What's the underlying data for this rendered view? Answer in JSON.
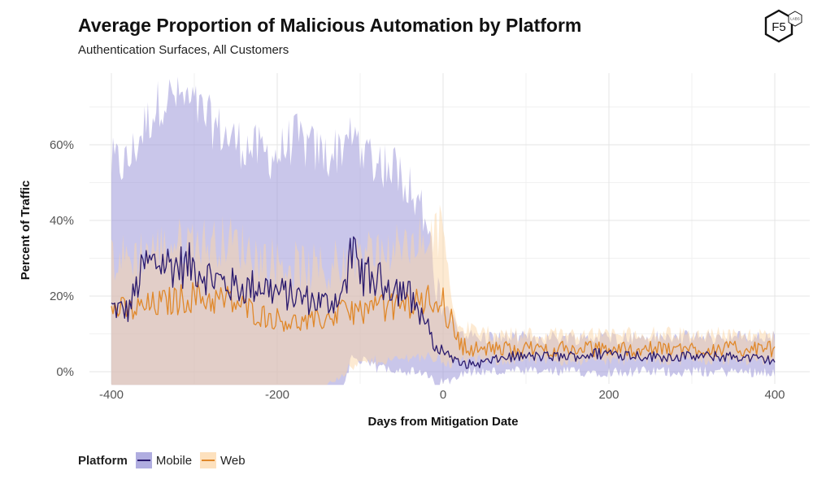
{
  "chart_data": {
    "type": "line",
    "title": "Average Proportion of Malicious Automation by Platform",
    "subtitle": "Authentication Surfaces, All Customers",
    "xlabel": "Days from Mitigation Date",
    "ylabel": "Percent of Traffic",
    "xlim": [
      -400,
      400
    ],
    "ylim": [
      -3.5,
      78
    ],
    "x_ticks": [
      -400,
      -200,
      0,
      200,
      400
    ],
    "x_tick_labels": [
      "-400",
      "-200",
      "0",
      "200",
      "400"
    ],
    "y_ticks": [
      0,
      20,
      40,
      60
    ],
    "y_tick_labels": [
      "0%",
      "20%",
      "40%",
      "60%"
    ],
    "grid": true,
    "legend_title": "Platform",
    "legend_position": "bottom-left",
    "series": [
      {
        "name": "Mobile",
        "color": "#2a1a6e",
        "band_color": "#9c98d8",
        "x": [
          -400,
          -380,
          -360,
          -340,
          -320,
          -300,
          -280,
          -260,
          -240,
          -220,
          -200,
          -180,
          -160,
          -140,
          -120,
          -110,
          -100,
          -80,
          -60,
          -40,
          -20,
          -10,
          0,
          10,
          20,
          40,
          60,
          80,
          100,
          150,
          200,
          250,
          300,
          350,
          400
        ],
        "values": [
          17,
          16,
          28,
          29,
          28,
          28,
          25,
          23,
          22,
          23,
          21,
          20,
          19,
          18,
          21,
          31,
          26,
          24,
          23,
          20,
          13,
          6,
          6,
          4,
          2,
          2,
          3,
          4,
          4,
          4,
          5,
          4,
          4,
          4,
          3
        ],
        "upper": [
          55,
          55,
          65,
          72,
          73,
          70,
          66,
          62,
          60,
          58,
          57,
          62,
          59,
          57,
          60,
          64,
          60,
          56,
          54,
          50,
          40,
          22,
          18,
          14,
          11,
          9,
          9,
          9,
          9,
          9,
          9,
          9,
          9,
          9,
          9
        ],
        "lower": [
          -3.5,
          -3.5,
          -3.5,
          -3.5,
          -3.5,
          -3.5,
          -3.5,
          -3.5,
          -3.5,
          -3.5,
          -3.5,
          -3.5,
          -3.5,
          -3.5,
          -3.5,
          4,
          3,
          1,
          1,
          0,
          -1,
          -3,
          -3,
          -2,
          0,
          0,
          0,
          0,
          0,
          0,
          0,
          0,
          0,
          0,
          0
        ]
      },
      {
        "name": "Web",
        "color": "#e0882a",
        "band_color": "#fcd6a6",
        "x": [
          -400,
          -380,
          -360,
          -340,
          -320,
          -300,
          -280,
          -260,
          -240,
          -220,
          -200,
          -180,
          -160,
          -140,
          -120,
          -100,
          -80,
          -60,
          -40,
          -20,
          0,
          10,
          20,
          40,
          60,
          80,
          100,
          150,
          200,
          250,
          300,
          350,
          400
        ],
        "values": [
          17,
          16,
          17,
          18,
          19,
          20,
          19,
          19,
          17,
          15,
          14,
          13,
          13,
          14,
          16,
          16,
          17,
          17,
          18,
          19,
          19,
          13,
          7,
          6,
          6,
          6,
          6,
          6,
          6,
          6,
          6,
          6,
          6
        ],
        "upper": [
          30,
          30,
          32,
          33,
          34,
          35,
          34,
          35,
          33,
          30,
          29,
          28,
          27,
          27,
          30,
          31,
          32,
          32,
          33,
          35,
          38,
          20,
          12,
          11,
          10,
          10,
          10,
          10,
          10,
          10,
          10,
          10,
          9
        ],
        "lower": [
          -3.5,
          -3.5,
          -3.5,
          -3.5,
          -3.5,
          -3.5,
          -3.5,
          -3.5,
          -3.5,
          -3.5,
          -3.5,
          -3.5,
          -3.5,
          -3.5,
          0,
          2,
          3,
          3,
          4,
          4,
          3,
          2,
          3,
          3,
          3,
          3,
          3,
          3,
          3,
          3,
          3,
          3,
          3
        ]
      }
    ]
  },
  "brand": {
    "logo_text": "F5",
    "logo_badge": "LABS"
  }
}
